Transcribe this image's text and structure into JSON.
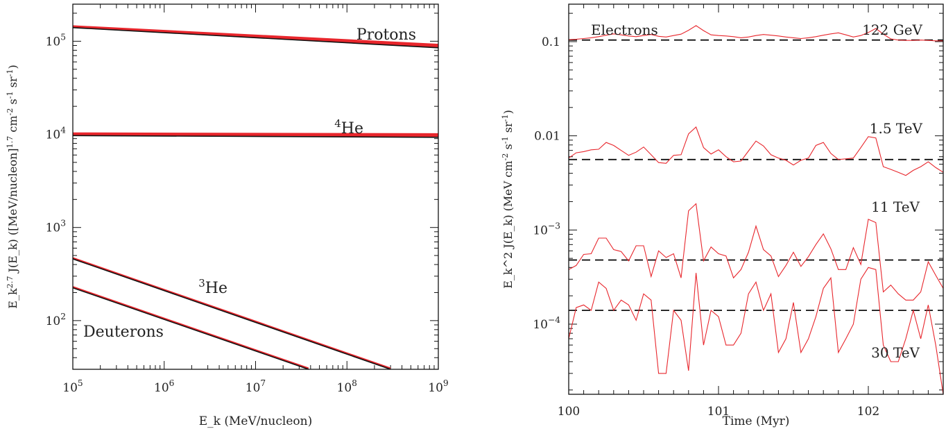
{
  "chart_data": [
    {
      "type": "line",
      "xlabel": "E_k (MeV/nucleon)",
      "ylabel": "E_k^{2.7} J(E_k) ([MeV/nucleon]^{1.7} cm^{-2} s^{-1} sr^{-1})",
      "x_scale": "log",
      "y_scale": "log",
      "xlim": [
        100000,
        1000000000
      ],
      "ylim": [
        30,
        250000
      ],
      "x_ticks": [
        {
          "value": 100000,
          "base": "10",
          "exp": "5"
        },
        {
          "value": 1000000,
          "base": "10",
          "exp": "6"
        },
        {
          "value": 10000000,
          "base": "10",
          "exp": "7"
        },
        {
          "value": 100000000,
          "base": "10",
          "exp": "8"
        },
        {
          "value": 1000000000,
          "base": "10",
          "exp": "9"
        }
      ],
      "y_ticks": [
        {
          "value": 100,
          "base": "10",
          "exp": "2"
        },
        {
          "value": 1000,
          "base": "10",
          "exp": "3"
        },
        {
          "value": 10000,
          "base": "10",
          "exp": "4"
        },
        {
          "value": 100000,
          "base": "10",
          "exp": "5"
        }
      ],
      "series": [
        {
          "name": "Protons",
          "x": [
            100000,
            1000000000
          ],
          "y": [
            140000,
            85000
          ],
          "red_y_high": [
            147000,
            93000
          ]
        },
        {
          "name": "4He",
          "label_sup": "4",
          "label_main": "He",
          "x": [
            100000,
            1000000000
          ],
          "y": [
            9700,
            9300
          ],
          "red_y_high": [
            10400,
            10200
          ]
        },
        {
          "name": "3He",
          "label_sup": "3",
          "label_main": "He",
          "x": [
            100000,
            300000000
          ],
          "y": [
            460,
            30
          ]
        },
        {
          "name": "Deuterons",
          "x": [
            100000,
            38000000
          ],
          "y": [
            225,
            30
          ]
        }
      ],
      "colors": {
        "model": "#111111",
        "band": "#e8262c"
      }
    },
    {
      "type": "line",
      "xlabel": "Time (Myr)",
      "ylabel": "E_k^2 J(E_k) (MeV cm^{-2} s^{-1} sr^{-1})",
      "y_scale": "log",
      "xlim": [
        100,
        102.5
      ],
      "ylim": [
        1.8e-05,
        0.25
      ],
      "x_ticks": [
        {
          "value": 100,
          "label": "100"
        },
        {
          "value": 101,
          "label": "101"
        },
        {
          "value": 102,
          "label": "102"
        }
      ],
      "y_ticks": [
        {
          "value": 0.1,
          "label": "0.1"
        },
        {
          "value": 0.01,
          "label": "0.01"
        },
        {
          "value": 0.001,
          "base": "10",
          "exp": "−3"
        },
        {
          "value": 0.0001,
          "base": "10",
          "exp": "−4"
        }
      ],
      "legend_title": "Electrons",
      "series": [
        {
          "name": "122 GeV",
          "mean": 0.104,
          "x": [
            100,
            100.05,
            100.1,
            100.15,
            100.2,
            100.25,
            100.3,
            100.35,
            100.4,
            100.45,
            100.5,
            100.55,
            100.6,
            100.65,
            100.7,
            100.75,
            100.8,
            100.85,
            100.9,
            100.95,
            101,
            101.05,
            101.1,
            101.15,
            101.2,
            101.25,
            101.3,
            101.35,
            101.4,
            101.45,
            101.5,
            101.55,
            101.6,
            101.65,
            101.7,
            101.75,
            101.8,
            101.85,
            101.9,
            101.95,
            102,
            102.05,
            102.1,
            102.15,
            102.2,
            102.25,
            102.3,
            102.35,
            102.4,
            102.45,
            102.5
          ],
          "y": [
            0.105,
            0.106,
            0.108,
            0.11,
            0.113,
            0.117,
            0.121,
            0.118,
            0.115,
            0.113,
            0.116,
            0.119,
            0.114,
            0.112,
            0.116,
            0.12,
            0.132,
            0.148,
            0.131,
            0.118,
            0.116,
            0.115,
            0.113,
            0.11,
            0.112,
            0.116,
            0.119,
            0.117,
            0.115,
            0.112,
            0.11,
            0.108,
            0.11,
            0.113,
            0.117,
            0.121,
            0.124,
            0.118,
            0.112,
            0.116,
            0.125,
            0.138,
            0.12,
            0.107,
            0.104,
            0.103,
            0.103,
            0.104,
            0.103,
            0.102,
            0.102
          ]
        },
        {
          "name": "1.5 TeV",
          "mean": 0.0056,
          "x": [
            100,
            100.05,
            100.1,
            100.15,
            100.2,
            100.25,
            100.3,
            100.35,
            100.4,
            100.45,
            100.5,
            100.55,
            100.6,
            100.65,
            100.7,
            100.75,
            100.8,
            100.85,
            100.9,
            100.95,
            101,
            101.05,
            101.1,
            101.15,
            101.2,
            101.25,
            101.3,
            101.35,
            101.4,
            101.45,
            101.5,
            101.55,
            101.6,
            101.65,
            101.7,
            101.75,
            101.8,
            101.85,
            101.9,
            101.95,
            102,
            102.05,
            102.1,
            102.15,
            102.2,
            102.25,
            102.3,
            102.35,
            102.4,
            102.45,
            102.5
          ],
          "y": [
            0.0058,
            0.0066,
            0.0068,
            0.0071,
            0.0072,
            0.0085,
            0.0079,
            0.007,
            0.0062,
            0.0067,
            0.0076,
            0.0063,
            0.0052,
            0.0051,
            0.0062,
            0.0063,
            0.0105,
            0.0124,
            0.0075,
            0.0064,
            0.0071,
            0.006,
            0.0053,
            0.0054,
            0.0069,
            0.0088,
            0.0078,
            0.0063,
            0.0058,
            0.0055,
            0.0049,
            0.0055,
            0.0058,
            0.0079,
            0.0085,
            0.0065,
            0.0056,
            0.0057,
            0.0058,
            0.0075,
            0.0098,
            0.0095,
            0.0047,
            0.0044,
            0.0041,
            0.0038,
            0.0043,
            0.0047,
            0.0053,
            0.0046,
            0.0041
          ]
        },
        {
          "name": "11 TeV",
          "mean": 0.00048,
          "x": [
            100,
            100.05,
            100.1,
            100.15,
            100.2,
            100.25,
            100.3,
            100.35,
            100.4,
            100.45,
            100.5,
            100.55,
            100.6,
            100.65,
            100.7,
            100.75,
            100.8,
            100.85,
            100.9,
            100.95,
            101,
            101.05,
            101.1,
            101.15,
            101.2,
            101.25,
            101.3,
            101.35,
            101.4,
            101.45,
            101.5,
            101.55,
            101.6,
            101.65,
            101.7,
            101.75,
            101.8,
            101.85,
            101.9,
            101.95,
            102,
            102.05,
            102.1,
            102.15,
            102.2,
            102.25,
            102.3,
            102.35,
            102.4,
            102.45,
            102.5
          ],
          "y": [
            0.00038,
            0.00042,
            0.00055,
            0.00056,
            0.00082,
            0.00082,
            0.00062,
            0.00059,
            0.00047,
            0.00068,
            0.00068,
            0.00032,
            0.0006,
            0.00051,
            0.00056,
            0.00031,
            0.0016,
            0.0019,
            0.00047,
            0.00066,
            0.00056,
            0.00053,
            0.00031,
            0.00038,
            0.00058,
            0.0011,
            0.00062,
            0.00053,
            0.00032,
            0.00042,
            0.00058,
            0.00041,
            0.00052,
            0.0007,
            0.00091,
            0.00063,
            0.00038,
            0.00038,
            0.00065,
            0.00043,
            0.0013,
            0.0012,
            0.00022,
            0.00026,
            0.00021,
            0.00018,
            0.00018,
            0.00022,
            0.00046,
            0.00033,
            0.00024
          ]
        },
        {
          "name": "30 TeV",
          "mean": 0.00014,
          "x": [
            100,
            100.05,
            100.1,
            100.15,
            100.2,
            100.25,
            100.3,
            100.35,
            100.4,
            100.45,
            100.5,
            100.55,
            100.6,
            100.65,
            100.7,
            100.75,
            100.8,
            100.85,
            100.9,
            100.95,
            101,
            101.05,
            101.1,
            101.15,
            101.2,
            101.25,
            101.3,
            101.35,
            101.4,
            101.45,
            101.5,
            101.55,
            101.6,
            101.65,
            101.7,
            101.75,
            101.8,
            101.85,
            101.9,
            101.95,
            102,
            102.05,
            102.1,
            102.15,
            102.2,
            102.25,
            102.3,
            102.35,
            102.4,
            102.45,
            102.5
          ],
          "y": [
            7e-05,
            0.00015,
            0.00016,
            0.00014,
            0.00028,
            0.00024,
            0.00014,
            0.00018,
            0.00016,
            0.00011,
            0.00021,
            0.00018,
            3e-05,
            3e-05,
            0.00014,
            0.00011,
            3.2e-05,
            0.00035,
            6e-05,
            0.00014,
            0.00012,
            6e-05,
            6e-05,
            8e-05,
            0.00021,
            0.00028,
            0.00014,
            0.00021,
            5e-05,
            7e-05,
            0.00017,
            5e-05,
            7e-05,
            0.00012,
            0.00024,
            0.00031,
            5e-05,
            7e-05,
            0.0001,
            0.0003,
            0.0004,
            0.00038,
            6e-05,
            4e-05,
            4e-05,
            7e-05,
            0.00014,
            7e-05,
            0.00016,
            6e-05,
            1.8e-05
          ]
        }
      ],
      "colors": {
        "series": "#e8262c",
        "mean": "#111111"
      }
    }
  ]
}
